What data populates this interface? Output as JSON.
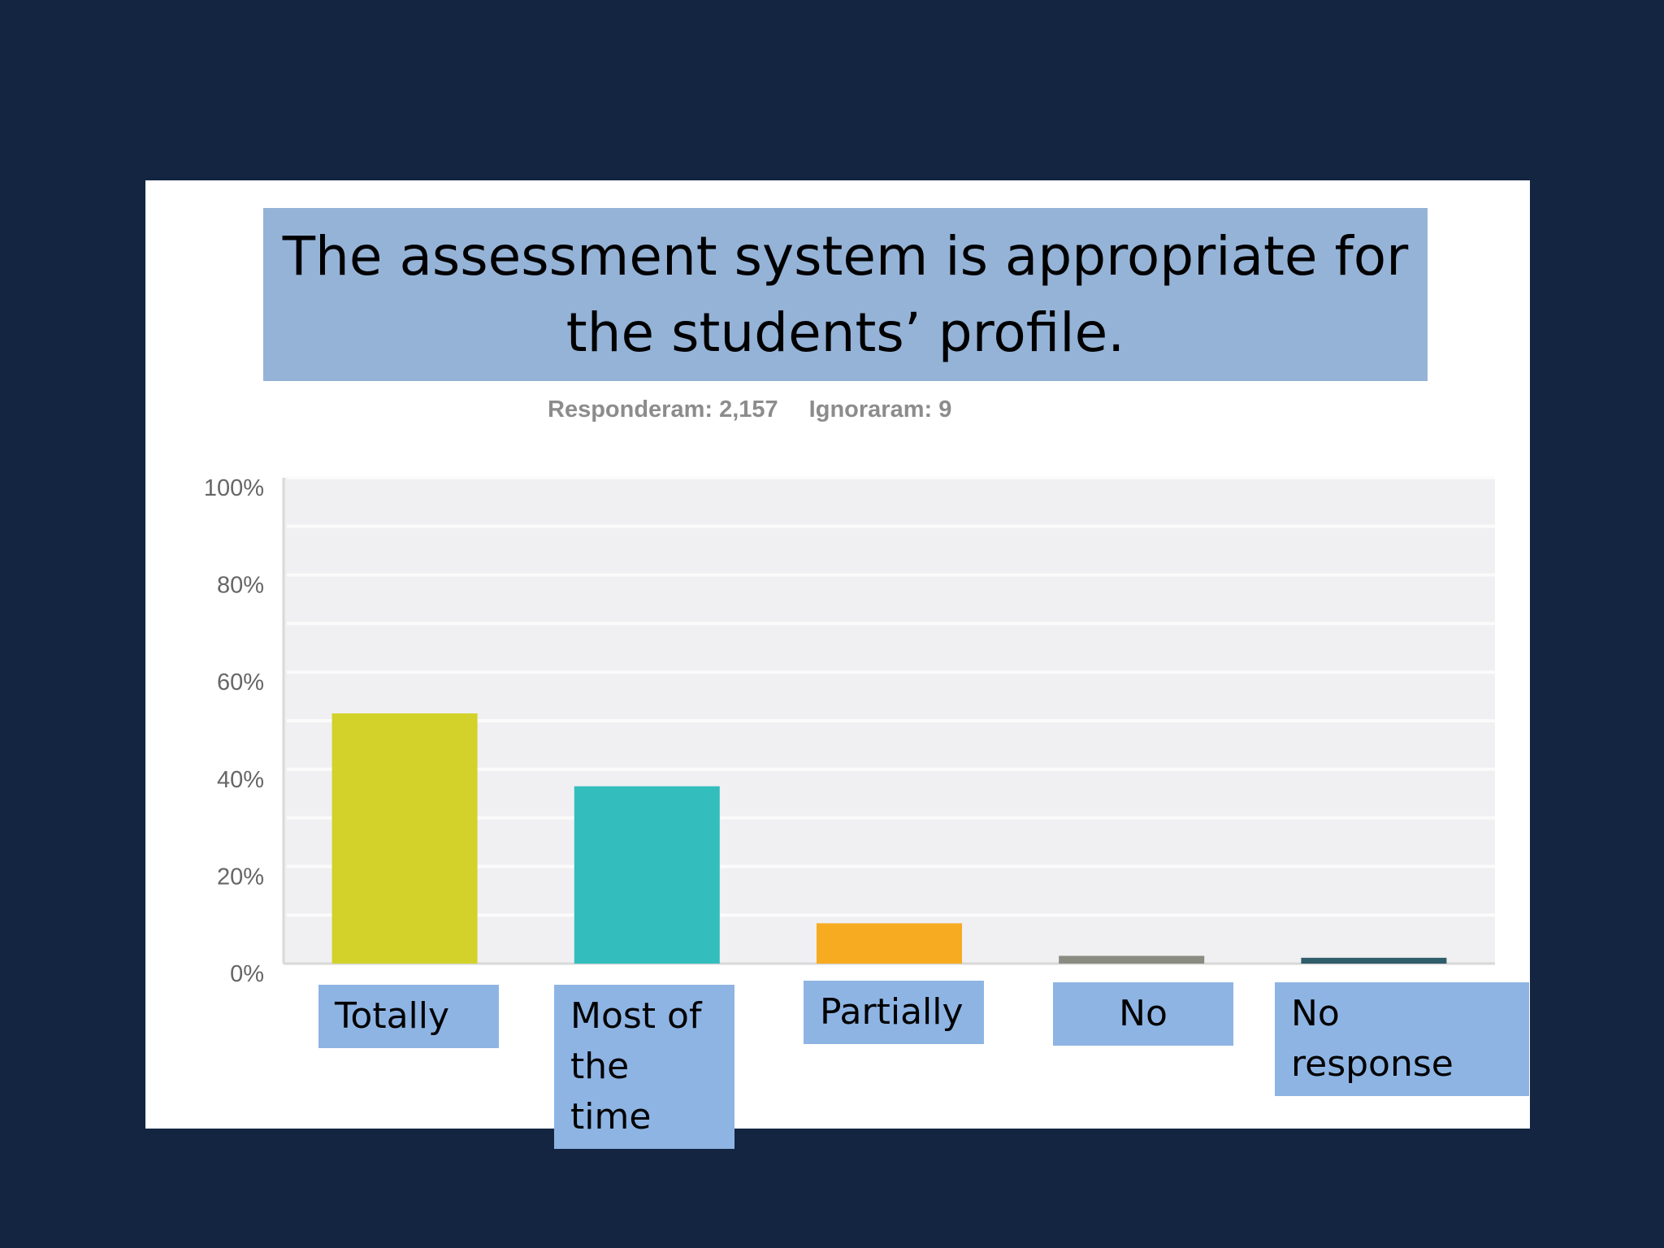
{
  "title": "The assessment system is appropriate for the students’ profile.",
  "stats": {
    "answered": "Responderam: 2,157",
    "skipped": "Ignoraram: 9"
  },
  "colors": {
    "background": "#142542",
    "panel": "#ffffff",
    "title_box": "#95b3d7",
    "category_box": "#8eb4e3",
    "plot_area": "#f0eff1"
  },
  "chart_data": {
    "type": "bar",
    "title": "The assessment system is appropriate for the students’ profile.",
    "categories": [
      "Totally",
      "Most of the time",
      "Partially",
      "No",
      "No response"
    ],
    "values": [
      51.5,
      36.5,
      8.3,
      1.6,
      1.2
    ],
    "value_unit": "%",
    "bar_colors": [
      "#d2d22a",
      "#33bdbd",
      "#f6ab20",
      "#8a8c82",
      "#2f5d6a"
    ],
    "ylim": [
      0,
      100
    ],
    "yticks": [
      "0%",
      "20%",
      "40%",
      "60%",
      "80%",
      "100%"
    ],
    "ytick_values": [
      0,
      20,
      40,
      60,
      80,
      100
    ],
    "grid": true,
    "legend": "none"
  }
}
